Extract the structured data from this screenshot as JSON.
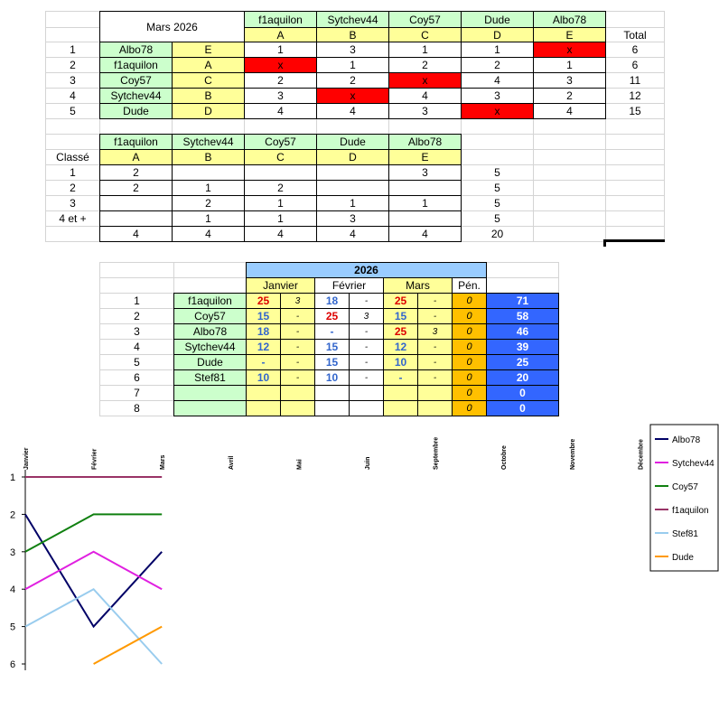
{
  "table1": {
    "title": "Mars 2026",
    "players": [
      "f1aquilon",
      "Sytchev44",
      "Coy57",
      "Dude",
      "Albo78"
    ],
    "letters": [
      "A",
      "B",
      "C",
      "D",
      "E"
    ],
    "total_header": "Total",
    "rows": [
      {
        "rank": 1,
        "name": "Albo78",
        "letter": "E",
        "cells": [
          1,
          3,
          1,
          1,
          "x"
        ],
        "total": 6
      },
      {
        "rank": 2,
        "name": "f1aquilon",
        "letter": "A",
        "cells": [
          "x",
          1,
          2,
          2,
          1
        ],
        "total": 6
      },
      {
        "rank": 3,
        "name": "Coy57",
        "letter": "C",
        "cells": [
          2,
          2,
          "x",
          4,
          3
        ],
        "total": 11
      },
      {
        "rank": 4,
        "name": "Sytchev44",
        "letter": "B",
        "cells": [
          3,
          "x",
          4,
          3,
          2
        ],
        "total": 12
      },
      {
        "rank": 5,
        "name": "Dude",
        "letter": "D",
        "cells": [
          4,
          4,
          3,
          "x",
          4
        ],
        "total": 15
      }
    ]
  },
  "table2": {
    "players": [
      "f1aquilon",
      "Sytchev44",
      "Coy57",
      "Dude",
      "Albo78"
    ],
    "letters": [
      "A",
      "B",
      "C",
      "D",
      "E"
    ],
    "row_header": "Classé",
    "rows": [
      {
        "rank": 1,
        "cells": [
          2,
          null,
          null,
          null,
          3
        ],
        "sum": 5
      },
      {
        "rank": 2,
        "cells": [
          2,
          1,
          2,
          null,
          null
        ],
        "sum": 5
      },
      {
        "rank": 3,
        "cells": [
          null,
          2,
          1,
          1,
          1
        ],
        "sum": 5
      },
      {
        "rank": "4 et +",
        "cells": [
          null,
          1,
          1,
          3,
          null
        ],
        "sum": 5
      },
      {
        "rank": null,
        "cells": [
          4,
          4,
          4,
          4,
          4
        ],
        "sum": 20
      }
    ]
  },
  "table3": {
    "year": "2026",
    "months": [
      "Janvier",
      "Février",
      "Mars"
    ],
    "penalty_header": "Pén.",
    "rows": [
      {
        "rank": 1,
        "name": "f1aquilon",
        "months": [
          [
            25,
            3
          ],
          [
            18,
            "-"
          ],
          [
            25,
            "-"
          ]
        ],
        "pen": 0,
        "total": 71
      },
      {
        "rank": 2,
        "name": "Coy57",
        "months": [
          [
            15,
            "-"
          ],
          [
            25,
            3
          ],
          [
            15,
            "-"
          ]
        ],
        "pen": 0,
        "total": 58
      },
      {
        "rank": 3,
        "name": "Albo78",
        "months": [
          [
            18,
            "-"
          ],
          [
            "-",
            "-"
          ],
          [
            25,
            3
          ]
        ],
        "pen": 0,
        "total": 46
      },
      {
        "rank": 4,
        "name": "Sytchev44",
        "months": [
          [
            12,
            "-"
          ],
          [
            15,
            "-"
          ],
          [
            12,
            "-"
          ]
        ],
        "pen": 0,
        "total": 39
      },
      {
        "rank": 5,
        "name": "Dude",
        "months": [
          [
            "-",
            "-"
          ],
          [
            15,
            "-"
          ],
          [
            10,
            "-"
          ]
        ],
        "pen": 0,
        "total": 25
      },
      {
        "rank": 6,
        "name": "Stef81",
        "months": [
          [
            10,
            "-"
          ],
          [
            10,
            "-"
          ],
          [
            "-",
            "-"
          ]
        ],
        "pen": 0,
        "total": 20
      },
      {
        "rank": 7,
        "name": null,
        "months": [
          [
            null,
            null
          ],
          [
            null,
            null
          ],
          [
            null,
            null
          ]
        ],
        "pen": 0,
        "total": 0
      },
      {
        "rank": 8,
        "name": null,
        "months": [
          [
            null,
            null
          ],
          [
            null,
            null
          ],
          [
            null,
            null
          ]
        ],
        "pen": 0,
        "total": 0
      }
    ]
  },
  "chart_data": {
    "type": "line",
    "categories": [
      "Janvier",
      "Février",
      "Mars",
      "Avril",
      "Mai",
      "Juin",
      "Septembre",
      "Octobre",
      "Novembre",
      "Décembre"
    ],
    "ylim": [
      1,
      6
    ],
    "yticks": [
      1,
      2,
      3,
      4,
      5,
      6
    ],
    "y_inverted": true,
    "series": [
      {
        "name": "Albo78",
        "color": "#000066",
        "values": [
          2,
          5,
          3,
          null,
          null,
          null,
          null,
          null,
          null,
          null
        ]
      },
      {
        "name": "Sytchev44",
        "color": "#e020e0",
        "values": [
          4,
          3,
          4,
          null,
          null,
          null,
          null,
          null,
          null,
          null
        ]
      },
      {
        "name": "Coy57",
        "color": "#108010",
        "values": [
          3,
          2,
          2,
          null,
          null,
          null,
          null,
          null,
          null,
          null
        ]
      },
      {
        "name": "f1aquilon",
        "color": "#993366",
        "values": [
          1,
          1,
          1,
          null,
          null,
          null,
          null,
          null,
          null,
          null
        ]
      },
      {
        "name": "Stef81",
        "color": "#99ccee",
        "values": [
          5,
          4,
          6,
          null,
          null,
          null,
          null,
          null,
          null,
          null
        ]
      },
      {
        "name": "Dude",
        "color": "#ff9900",
        "values": [
          null,
          6,
          5,
          null,
          null,
          null,
          null,
          null,
          null,
          null
        ]
      }
    ]
  }
}
